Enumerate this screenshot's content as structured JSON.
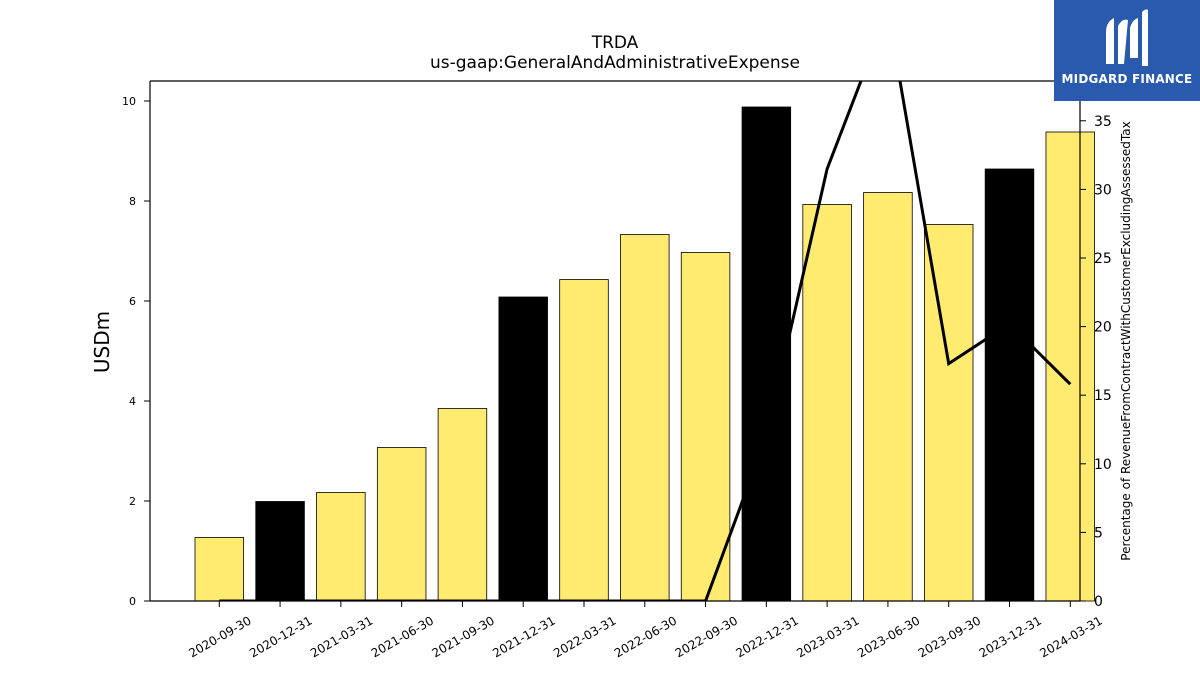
{
  "chart_data": {
    "type": "bar",
    "title": "TRDA",
    "subtitle": "us-gaap:GeneralAndAdministrativeExpense",
    "ylabel": "USDm",
    "y2label": "Percentage of RevenueFromContractWithCustomerExcludingAssessedTax",
    "ylim": [
      0,
      10.4
    ],
    "y2lim": [
      0,
      37.9
    ],
    "yticks": [
      0,
      2,
      4,
      6,
      8,
      10
    ],
    "y2ticks": [
      0,
      5,
      10,
      15,
      20,
      25,
      30,
      35
    ],
    "categories": [
      "2020-09-30",
      "2020-12-31",
      "2021-03-31",
      "2021-06-30",
      "2021-09-30",
      "2021-12-31",
      "2022-03-31",
      "2022-06-30",
      "2022-09-30",
      "2022-12-31",
      "2023-03-31",
      "2023-06-30",
      "2023-09-30",
      "2023-12-31",
      "2024-03-31"
    ],
    "series": [
      {
        "values": [
          1.27,
          1.99,
          2.17,
          3.07,
          3.85,
          6.08,
          6.43,
          7.33,
          6.97,
          9.88,
          7.93,
          8.17,
          7.53,
          8.64,
          9.38
        ],
        "colors": [
          "#ffeb70",
          "#000000",
          "#ffeb70",
          "#ffeb70",
          "#ffeb70",
          "#000000",
          "#ffeb70",
          "#ffeb70",
          "#ffeb70",
          "#000000",
          "#ffeb70",
          "#ffeb70",
          "#ffeb70",
          "#000000",
          "#ffeb70"
        ]
      },
      {
        "type": "line",
        "axis": "right",
        "color": "#000000",
        "values": [
          0,
          0,
          0,
          0,
          0,
          0,
          0,
          0,
          0,
          12.0,
          31.5,
          43.0,
          17.3,
          20.2,
          15.8
        ]
      }
    ],
    "grid": false
  },
  "logo": {
    "text": "MIDGARD FINANCE",
    "bg": "#2a5aae"
  }
}
